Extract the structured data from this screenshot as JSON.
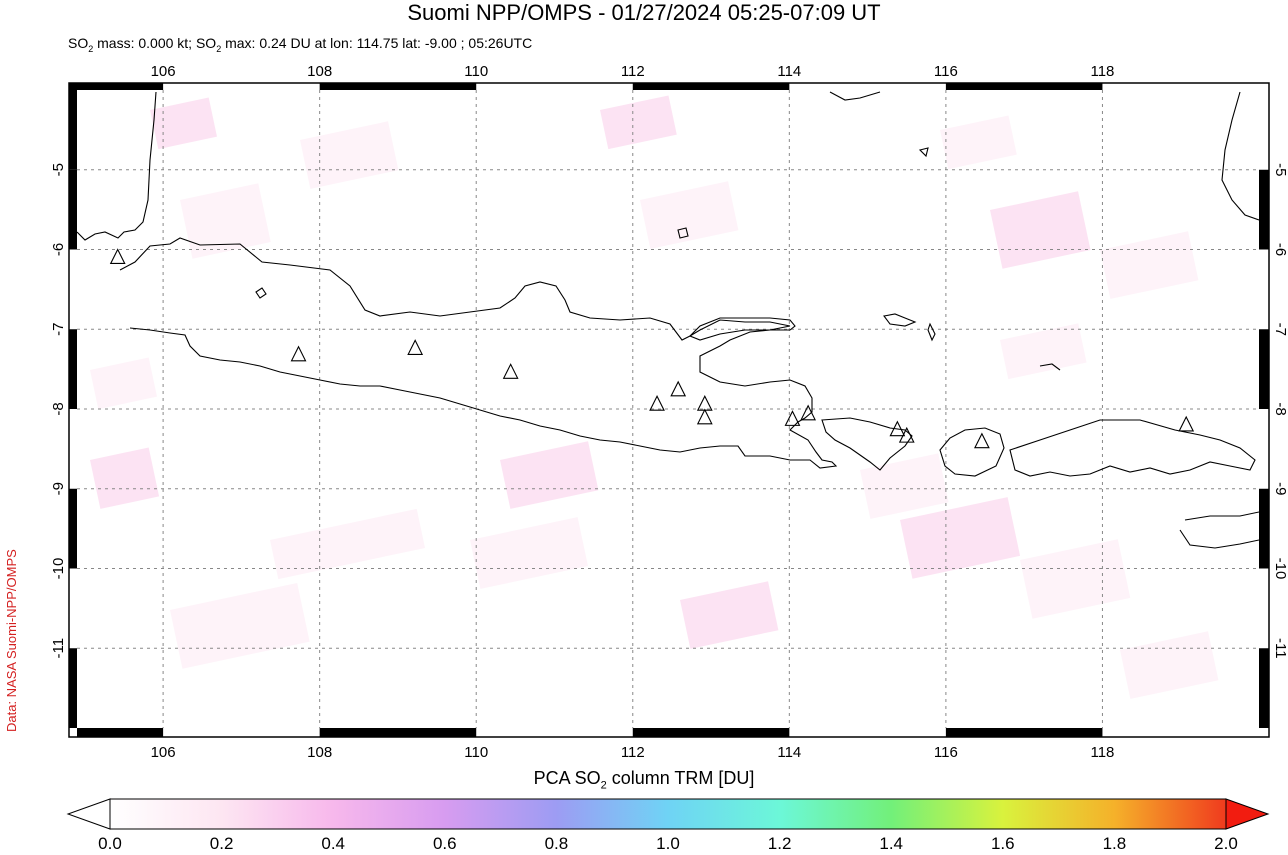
{
  "title": "Suomi NPP/OMPS - 01/27/2024 05:25-07:09 UT",
  "subtitle": {
    "prefix": "SO",
    "sub1": "2",
    "mid": " mass: 0.000 kt; SO",
    "sub2": "2",
    "suffix": " max: 0.24 DU at lon: 114.75 lat: -9.00 ; 05:26UTC"
  },
  "credit": "Data: NASA Suomi-NPP/OMPS",
  "map": {
    "lon_range": [
      104.9,
      120.0
    ],
    "lat_range": [
      -12.0,
      -4.0
    ],
    "lon_ticks": [
      "106",
      "108",
      "110",
      "112",
      "114",
      "116",
      "118"
    ],
    "lat_ticks": [
      "-5",
      "-6",
      "-7",
      "-8",
      "-9",
      "-10",
      "-11"
    ],
    "grid": true,
    "max_marker": {
      "lon": 114.75,
      "lat": -9.0
    },
    "volcanoes": [
      {
        "lon": 105.42,
        "lat": -6.1
      },
      {
        "lon": 107.73,
        "lat": -7.32
      },
      {
        "lon": 109.22,
        "lat": -7.24
      },
      {
        "lon": 110.44,
        "lat": -7.54
      },
      {
        "lon": 112.31,
        "lat": -7.94
      },
      {
        "lon": 112.58,
        "lat": -7.76
      },
      {
        "lon": 112.92,
        "lat": -7.94
      },
      {
        "lon": 112.92,
        "lat": -8.11
      },
      {
        "lon": 114.04,
        "lat": -8.13
      },
      {
        "lon": 114.24,
        "lat": -8.06
      },
      {
        "lon": 115.38,
        "lat": -8.26
      },
      {
        "lon": 115.5,
        "lat": -8.34
      },
      {
        "lon": 116.46,
        "lat": -8.41
      },
      {
        "lon": 119.07,
        "lat": -8.2
      }
    ]
  },
  "colorbar": {
    "title_prefix": "PCA SO",
    "title_sub": "2",
    "title_suffix": " column TRM [DU]",
    "ticks": [
      "0.0",
      "0.2",
      "0.4",
      "0.6",
      "0.8",
      "1.0",
      "1.2",
      "1.4",
      "1.6",
      "1.8",
      "2.0"
    ],
    "colors": [
      "#ffffff",
      "#fde6f2",
      "#f7b8ec",
      "#d79cf0",
      "#9d9cf3",
      "#6fd3f5",
      "#6cf7d8",
      "#72f07a",
      "#d9f23d",
      "#f5b12a",
      "#f03b1e",
      "#f21c10"
    ]
  }
}
